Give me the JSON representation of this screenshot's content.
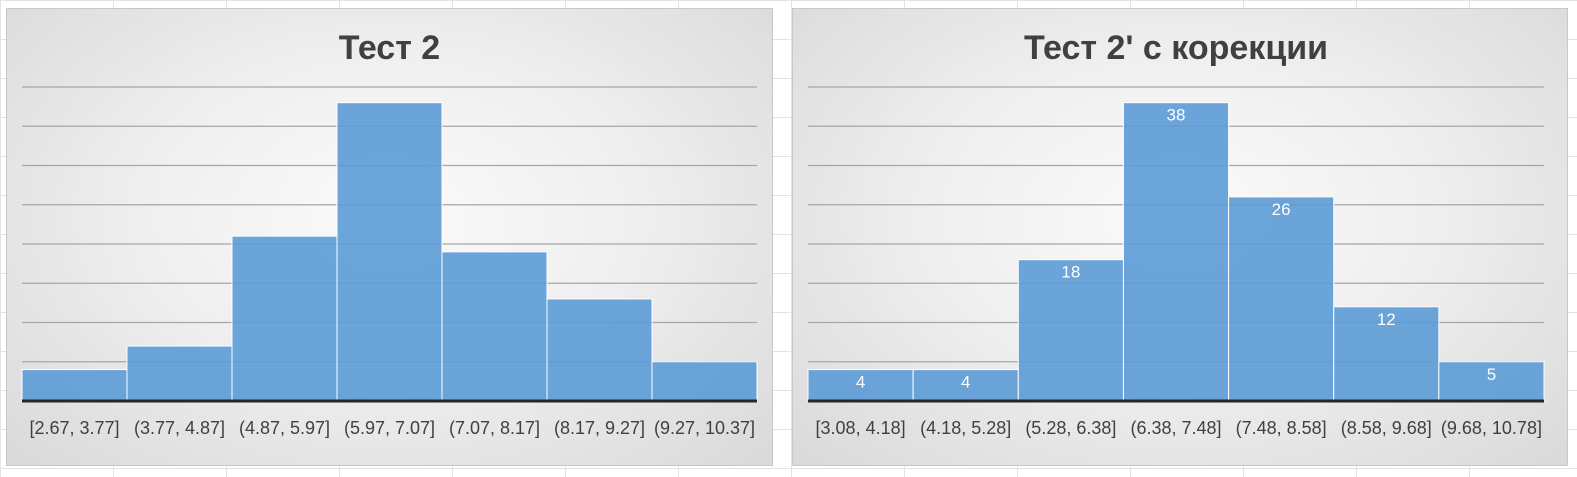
{
  "chart_data": [
    {
      "type": "bar",
      "title": "Тест 2",
      "categories": [
        "[2.67, 3.77]",
        "(3.77, 4.87]",
        "(4.87, 5.97]",
        "(5.97, 7.07]",
        "(7.07, 8.17]",
        "(8.17, 9.27]",
        "(9.27, 10.37]"
      ],
      "values": [
        4,
        7,
        21,
        38,
        19,
        13,
        5
      ],
      "show_values": false,
      "ylim": [
        0,
        40
      ],
      "grid": true,
      "color": "#5B9BD5"
    },
    {
      "type": "bar",
      "title": "Тест 2' с корекции",
      "categories": [
        "[3.08, 4.18]",
        "(4.18, 5.28]",
        "(5.28, 6.38]",
        "(6.38, 7.48]",
        "(7.48, 8.58]",
        "(8.58, 9.68]",
        "(9.68, 10.78]"
      ],
      "values": [
        4,
        4,
        18,
        38,
        26,
        12,
        5
      ],
      "show_values": true,
      "ylim": [
        0,
        40
      ],
      "grid": true,
      "color": "#5B9BD5"
    }
  ]
}
